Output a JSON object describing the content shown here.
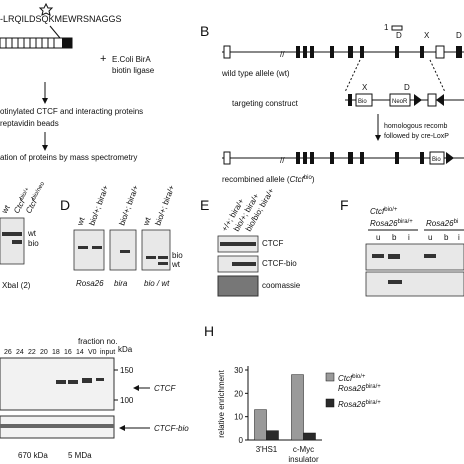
{
  "panel_a": {
    "sequence": "-LRQILDSQKMEWRSNAGGS",
    "plus": "+",
    "ligase": [
      "E.Coli BirA",
      "biotin ligase"
    ],
    "steps": [
      "otinylated CTCF and interacting proteins",
      "reptavidin beads",
      "ation of proteins by mass spectrometry"
    ]
  },
  "panel_b": {
    "label": "B",
    "exon": "1",
    "sites": [
      "D",
      "X",
      "D",
      "X",
      "D",
      "D"
    ],
    "wt": "wild type allele (wt)",
    "targeting": "targeting construct",
    "recomb": [
      "homologous recomb",
      "followed by cre-LoxP"
    ],
    "recombined": [
      "recombined allele (",
      "Ctcf",
      "bio",
      ")"
    ],
    "cassettes": [
      "Bio",
      "NeoR",
      "Bio"
    ]
  },
  "panel_c": {
    "headers": [
      "wt",
      "Ctcf",
      "bio/+",
      "Ctcf",
      "bio/neo"
    ],
    "bands": [
      "wt",
      "bio"
    ],
    "footer": "XbaI (2)"
  },
  "panel_d": {
    "label": "D",
    "headers": [
      "wt",
      "bio/+; bira/+",
      "bio/+; bira/+",
      "wt",
      "bio/+; bira/+"
    ],
    "bands": [
      "bio",
      "wt"
    ],
    "footers": [
      "Rosa26",
      "bira",
      "bio / wt"
    ]
  },
  "panel_e": {
    "label": "E",
    "headers": [
      "+/+; bira/+",
      "bio/+; bira/+",
      "bio/bio; bira/+"
    ],
    "rows": [
      "CTCF",
      "CTCF-bio",
      "coomassie"
    ]
  },
  "panel_f": {
    "label": "F",
    "genotype": [
      "Ctcf",
      "bio/+",
      "Rosa26",
      "bira/+",
      "Rosa26",
      "bi"
    ],
    "lanes": [
      "u",
      "b",
      "i",
      "u",
      "b",
      "i"
    ]
  },
  "panel_g": {
    "fraction_title": "fraction no.",
    "fractions": [
      "26",
      "24",
      "22",
      "20",
      "18",
      "16",
      "14",
      "V0",
      "input"
    ],
    "kda": "kDa",
    "markers": [
      "150",
      "100"
    ],
    "bands": [
      "CTCF",
      "CTCF-bio"
    ],
    "sizes": [
      "670 kDa",
      "5 MDa"
    ]
  },
  "panel_h": {
    "label": "H",
    "type": "bar",
    "ylabel": "relative enrichment",
    "categories": [
      [
        "3'HS1"
      ],
      [
        "c-Myc",
        "insulator"
      ]
    ],
    "ylim": [
      0,
      30
    ],
    "yticks": [
      0,
      10,
      20,
      30
    ],
    "series": [
      {
        "name": [
          "Ctcf",
          "bio/+",
          "Rosa26",
          "bira/+"
        ],
        "color": "#9a9a9a",
        "values": [
          13,
          28
        ]
      },
      {
        "name": [
          "Rosa26",
          "bira/+"
        ],
        "color": "#2a2a2a",
        "values": [
          4,
          3
        ]
      }
    ]
  }
}
